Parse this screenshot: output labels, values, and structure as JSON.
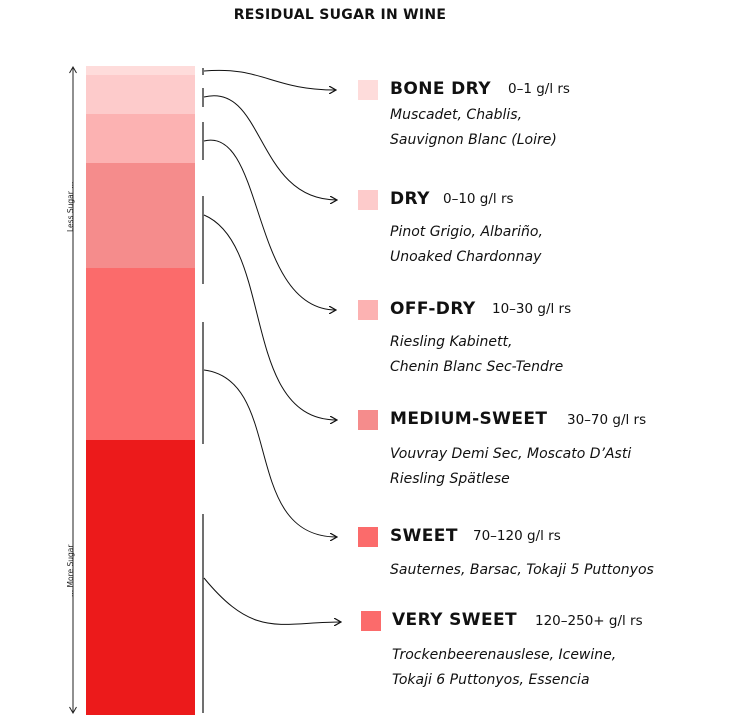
{
  "title": "RESIDUAL SUGAR IN WINE",
  "axis": {
    "top_label": "Less Sugar ...",
    "bottom_label": "... More Sugar"
  },
  "colors": {
    "bone_dry": "#fedcdb",
    "dry": "#fdcbcb",
    "off_dry": "#fcb2b2",
    "medium_sweet": "#f58c8c",
    "sweet": "#fb6b6b",
    "very_sweet": "#ec1a1b"
  },
  "categories": [
    {
      "name": "BONE DRY",
      "range": "0–1 g/l rs",
      "examples": [
        "Muscadet, Chablis,",
        "Sauvignon Blanc (Loire)"
      ]
    },
    {
      "name": "DRY",
      "range": "0–10 g/l rs",
      "examples": [
        "Pinot Grigio, Albariño,",
        "Unoaked Chardonnay"
      ]
    },
    {
      "name": "OFF-DRY",
      "range": "10–30 g/l rs",
      "examples": [
        "Riesling Kabinett,",
        "Chenin Blanc Sec-Tendre"
      ]
    },
    {
      "name": "MEDIUM-SWEET",
      "range": "30–70 g/l rs",
      "examples": [
        "Vouvray Demi Sec, Moscato D’Asti",
        "Riesling Spätlese"
      ]
    },
    {
      "name": "SWEET",
      "range": "70–120 g/l rs",
      "examples": [
        "Sauternes, Barsac, Tokaji 5 Puttonyos"
      ]
    },
    {
      "name": "VERY SWEET",
      "range": "120–250+ g/l rs",
      "examples": [
        "Trockenbeerenauslese, Icewine,",
        "Tokaji 6 Puttonyos, Essencia"
      ]
    }
  ]
}
